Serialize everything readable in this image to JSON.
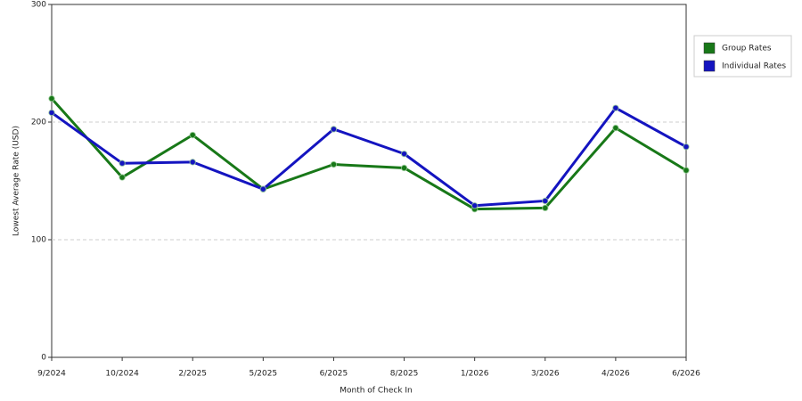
{
  "chart_data": {
    "type": "line",
    "x_label": "Month of Check In",
    "y_label": "Lowest Average Rate (USD)",
    "categories": [
      "9/2024",
      "10/2024",
      "2/2025",
      "5/2025",
      "6/2025",
      "8/2025",
      "1/2026",
      "3/2026",
      "4/2026",
      "6/2026"
    ],
    "series": [
      {
        "name": "Group Rates",
        "color": "#187818",
        "values": [
          220,
          153,
          189,
          143,
          164,
          161,
          126,
          127,
          195,
          159
        ]
      },
      {
        "name": "Individual Rates",
        "color": "#1414c0",
        "values": [
          208,
          165,
          166,
          143,
          194,
          173,
          129,
          133,
          212,
          179
        ]
      }
    ],
    "ylim": [
      0,
      300
    ],
    "yticks": [
      0,
      100,
      200,
      300
    ],
    "grid": true,
    "legend": "right"
  }
}
